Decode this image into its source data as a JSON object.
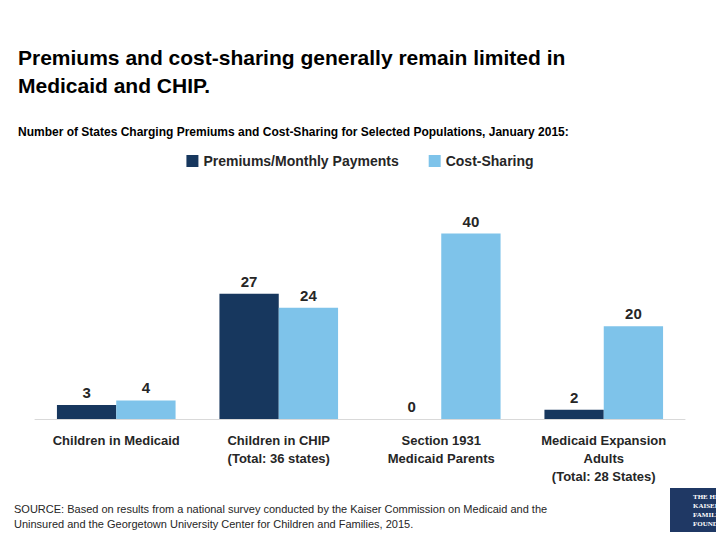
{
  "chart_data": {
    "type": "bar",
    "title": "Premiums and cost-sharing generally remain limited in Medicaid and CHIP.",
    "subtitle": "Number of States Charging Premiums and Cost-Sharing for Selected Populations, January 2015:",
    "categories": [
      "Children in Medicaid",
      "Children in CHIP\n(Total: 36 states)",
      "Section 1931\nMedicaid Parents",
      "Medicaid Expansion\nAdults\n(Total: 28 States)"
    ],
    "series": [
      {
        "name": "Premiums/Monthly Payments",
        "color": "#17375e",
        "values": [
          3,
          27,
          0,
          2
        ]
      },
      {
        "name": "Cost-Sharing",
        "color": "#7ec3ea",
        "values": [
          4,
          24,
          40,
          20
        ]
      }
    ],
    "ylim": [
      0,
      44
    ],
    "data_labels": true,
    "tick_labels": "x",
    "grid": false,
    "legend": "top",
    "source": "SOURCE: Based on results from a national survey conducted by the Kaiser Commission on Medicaid and the Uninsured and the Georgetown University Center for Children and Families, 2015.",
    "logo": [
      "THE HENRY J.",
      "KAISER",
      "FAMILY",
      "FOUNDATION"
    ]
  }
}
